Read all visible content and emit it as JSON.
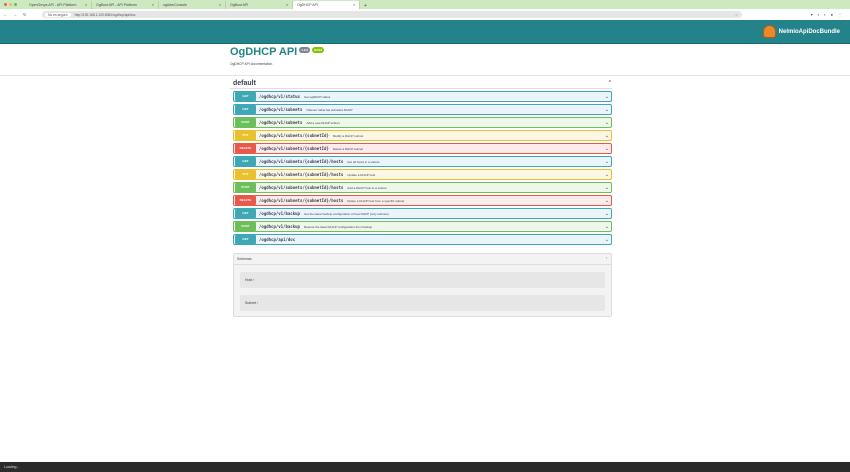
{
  "browser": {
    "tabs": [
      {
        "label": "OpenGnsys API - API Platform"
      },
      {
        "label": "OgBoot API - API Platform"
      },
      {
        "label": "ogAdmConsole"
      },
      {
        "label": "OgBoot API"
      },
      {
        "label": "OgDHCP API",
        "active": true
      }
    ],
    "new_tab": "+",
    "security_chip": "No es seguro",
    "url": "http://192.168.1.120:8081/ogdhcp/api/doc"
  },
  "header": {
    "logo_text": "NelmioApiDocBundle"
  },
  "info": {
    "title": "OgDHCP API",
    "version": "1.0.0",
    "oas": "OAS3",
    "description": "OgDHCP API documentation"
  },
  "section": {
    "title": "default"
  },
  "method_colors": {
    "GET": "#3fa8b5",
    "POST": "#6cbf5a",
    "PUT": "#e8c12d",
    "DELETE": "#e8594b"
  },
  "operations": [
    {
      "method": "GET",
      "path": "/ogdhcp/v1/status",
      "summary": "Get ogDHCP status"
    },
    {
      "method": "GET",
      "path": "/ogdhcp/v1/subnets",
      "summary": "Obtener todas las subredes DHCP"
    },
    {
      "method": "POST",
      "path": "/ogdhcp/v1/subnets",
      "summary": "Add a new DHCP subnet"
    },
    {
      "method": "PUT",
      "path": "/ogdhcp/v1/subnets/{subnetId}",
      "summary": "Modify a DHCP subnet"
    },
    {
      "method": "DELETE",
      "path": "/ogdhcp/v1/subnets/{subnetId}",
      "summary": "Delete a DHCP subnet"
    },
    {
      "method": "GET",
      "path": "/ogdhcp/v1/subnets/{subnetId}/hosts",
      "summary": "Get all hosts in a subnet"
    },
    {
      "method": "PUT",
      "path": "/ogdhcp/v1/subnets/{subnetId}/hosts",
      "summary": "Update a DHCP host"
    },
    {
      "method": "POST",
      "path": "/ogdhcp/v1/subnets/{subnetId}/hosts",
      "summary": "Add a DHCP host to a subnet"
    },
    {
      "method": "DELETE",
      "path": "/ogdhcp/v1/subnets/{subnetId}/hosts",
      "summary": "Delete a DHCP host from a specific subnet"
    },
    {
      "method": "GET",
      "path": "/ogdhcp/v1/backup",
      "summary": "Get the latest backup configuration of Kea DHCP (only subnets)"
    },
    {
      "method": "POST",
      "path": "/ogdhcp/v1/backup",
      "summary": "Restore the latest DHCP configuration from backup"
    },
    {
      "method": "GET",
      "path": "/ogdhcp/api/doc",
      "summary": ""
    }
  ],
  "schemas": {
    "title": "Schemas",
    "models": [
      {
        "name": "Host"
      },
      {
        "name": "Subnet"
      }
    ]
  },
  "status_bar": "Loading..."
}
